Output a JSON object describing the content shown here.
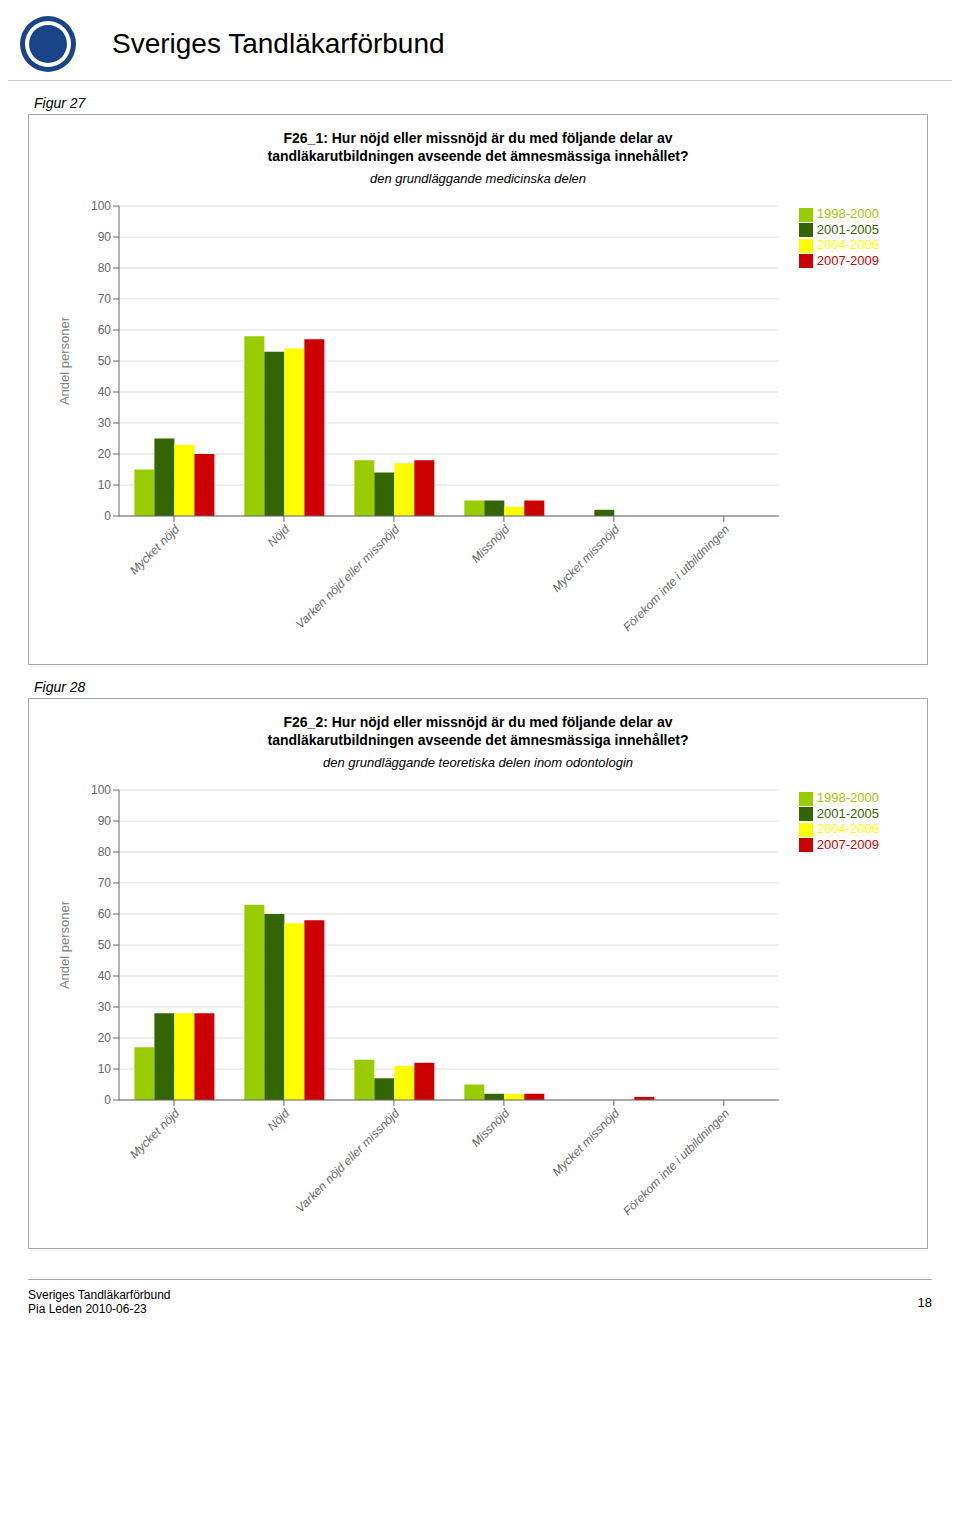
{
  "title": "Sveriges Tandläkarförbund",
  "annotations": [
    "Sveriges Tandläkarförbund",
    "Pia Leden 2010-06-23",
    "18"
  ],
  "chart_data": [
    {
      "type": "bar",
      "annotations": [
        "Figur 27"
      ],
      "title": "F26_1: Hur nöjd eller missnöjd är du med följande delar av\ntandläkarutbildningen avseende det ämnesmässiga innehållet?",
      "subtitle": "den grundläggande medicinska delen",
      "categories": [
        "Mycket nöjd",
        "Nöjd",
        "Varken nöjd eller missnöjd",
        "Missnöjd",
        "Mycket missnöjd",
        "Förekom inte i utbildningen"
      ],
      "series": [
        {
          "name": "1998-2000",
          "color": "#99cc00",
          "values": [
            15,
            58,
            18,
            5,
            0,
            0
          ]
        },
        {
          "name": "2001-2005",
          "color": "#336600",
          "values": [
            25,
            53,
            14,
            5,
            2,
            0
          ]
        },
        {
          "name": "2004-2006",
          "color": "#ffff00",
          "values": [
            23,
            54,
            17,
            3,
            0,
            0
          ]
        },
        {
          "name": "2007-2009",
          "color": "#cc0000",
          "values": [
            20,
            57,
            18,
            5,
            0,
            0
          ]
        }
      ],
      "ylabel": "Andel personer",
      "ylim": [
        0,
        100
      ],
      "yticks": [
        0,
        10,
        20,
        30,
        40,
        50,
        60,
        70,
        80,
        90,
        100
      ],
      "grid": true,
      "legend": "right"
    },
    {
      "type": "bar",
      "annotations": [
        "Figur 28"
      ],
      "title": "F26_2: Hur nöjd eller missnöjd är du med följande delar av\ntandläkarutbildningen avseende det ämnesmässiga innehållet?",
      "subtitle": "den grundläggande teoretiska delen inom odontologin",
      "categories": [
        "Mycket nöjd",
        "Nöjd",
        "Varken nöjd eller missnöjd",
        "Missnöjd",
        "Mycket missnöjd",
        "Förekom inte i utbildningen"
      ],
      "series": [
        {
          "name": "1998-2000",
          "color": "#99cc00",
          "values": [
            17,
            63,
            13,
            5,
            0,
            0
          ]
        },
        {
          "name": "2001-2005",
          "color": "#336600",
          "values": [
            28,
            60,
            7,
            2,
            0,
            0
          ]
        },
        {
          "name": "2004-2006",
          "color": "#ffff00",
          "values": [
            28,
            57,
            11,
            2,
            0,
            0
          ]
        },
        {
          "name": "2007-2009",
          "color": "#cc0000",
          "values": [
            28,
            58,
            12,
            2,
            1,
            0
          ]
        }
      ],
      "ylabel": "Andel personer",
      "ylim": [
        0,
        100
      ],
      "yticks": [
        0,
        10,
        20,
        30,
        40,
        50,
        60,
        70,
        80,
        90,
        100
      ],
      "grid": true,
      "legend": "right"
    }
  ]
}
